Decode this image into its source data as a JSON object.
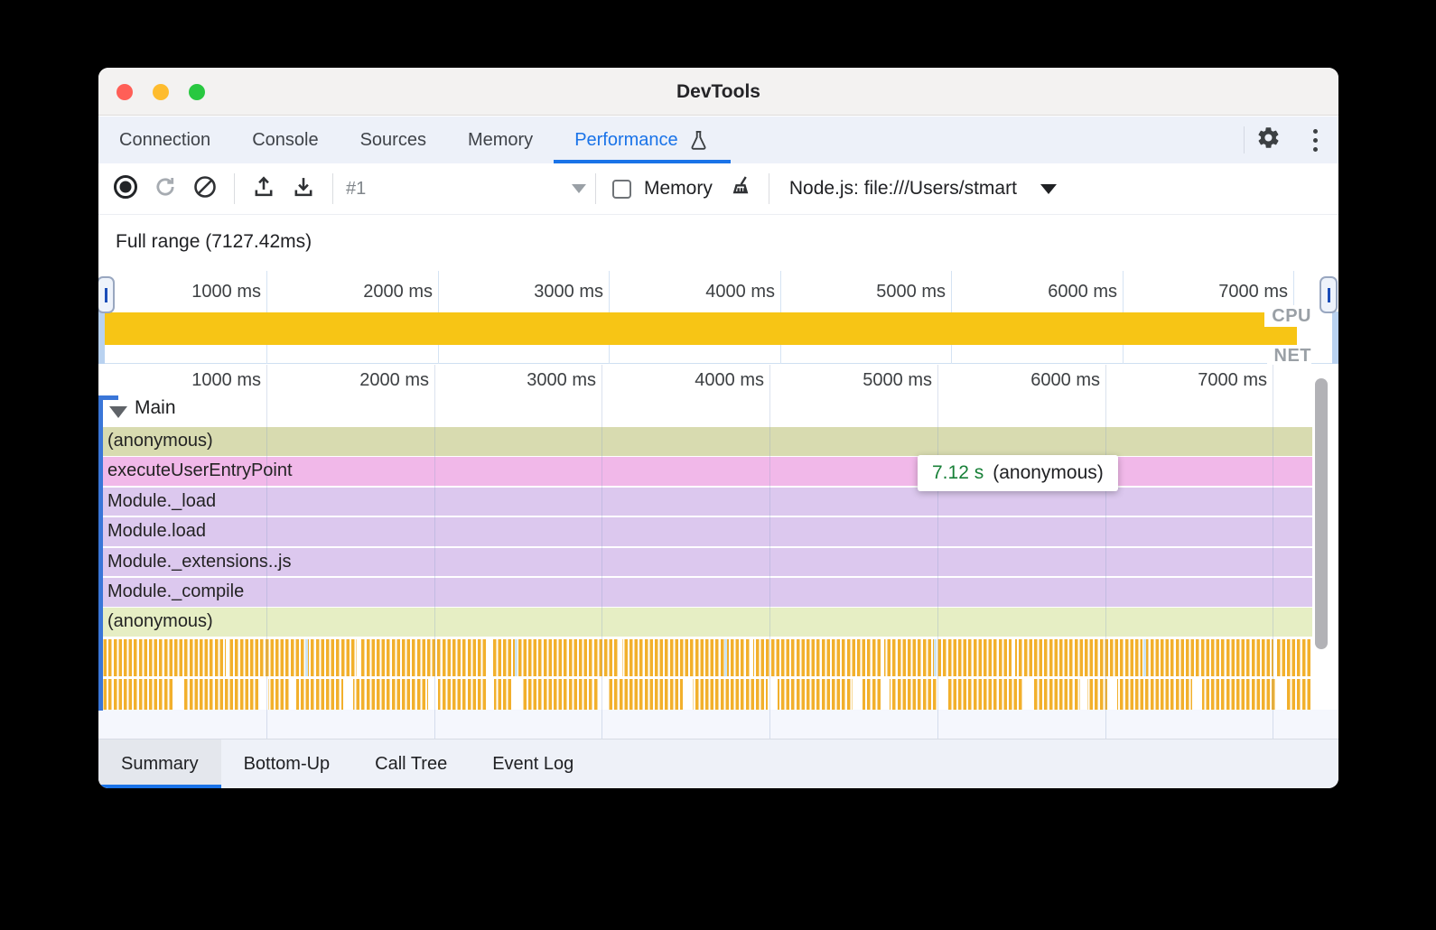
{
  "window": {
    "title": "DevTools"
  },
  "tabs": {
    "items": [
      "Connection",
      "Console",
      "Sources",
      "Memory",
      "Performance"
    ],
    "active": "Performance"
  },
  "toolbar": {
    "history_label": "#1",
    "memory_label": "Memory",
    "memory_checked": false,
    "target_label": "Node.js: file:///Users/stmart"
  },
  "status": {
    "full_range": "Full range (7127.42ms)"
  },
  "overview": {
    "ticks": [
      "1000 ms",
      "2000 ms",
      "3000 ms",
      "4000 ms",
      "5000 ms",
      "6000 ms",
      "7000 ms"
    ],
    "cpu_label": "CPU",
    "net_label": "NET",
    "cpu_color": "#f7c515",
    "cpu_width": 1320
  },
  "flame": {
    "ticks": [
      "1000 ms",
      "2000 ms",
      "3000 ms",
      "4000 ms",
      "5000 ms",
      "6000 ms",
      "7000 ms"
    ],
    "track_label": "Main",
    "rows": [
      {
        "label": "(anonymous)",
        "color": "#d8dbb0"
      },
      {
        "label": "executeUserEntryPoint",
        "color": "#f1b8e9"
      },
      {
        "label": "Module._load",
        "color": "#dcc8ee"
      },
      {
        "label": "Module.load",
        "color": "#dcc8ee"
      },
      {
        "label": "Module._extensions..js",
        "color": "#dcc8ee"
      },
      {
        "label": "Module._compile",
        "color": "#dcc8ee"
      },
      {
        "label": "(anonymous)",
        "color": "#e6eec4"
      }
    ]
  },
  "tooltip": {
    "duration": "7.12 s",
    "label": "(anonymous)",
    "duration_color": "#188038"
  },
  "bottom_tabs": {
    "items": [
      "Summary",
      "Bottom-Up",
      "Call Tree",
      "Event Log"
    ],
    "active": "Summary"
  },
  "colors": {
    "accent": "#1a73e8"
  }
}
